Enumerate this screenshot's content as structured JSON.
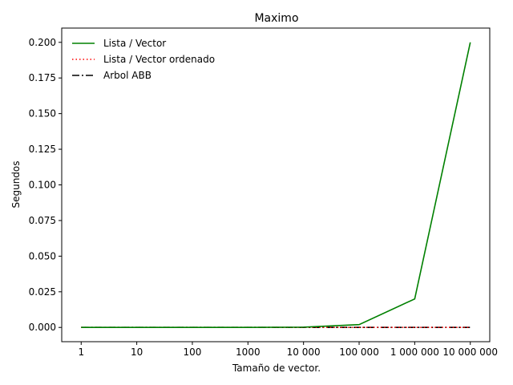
{
  "chart_data": {
    "type": "line",
    "title": "Maximo",
    "xlabel": "Tamaño de vector.",
    "ylabel": "Segundos",
    "x_scale": "log",
    "x": [
      1,
      10,
      100,
      1000,
      10000,
      100000,
      1000000,
      10000000
    ],
    "x_tick_labels": [
      "1",
      "10",
      "100",
      "1000",
      "10 000",
      "100 000",
      "1 000 000",
      "10 000 000"
    ],
    "y_ticks": [
      0.0,
      0.025,
      0.05,
      0.075,
      0.1,
      0.125,
      0.15,
      0.175,
      0.2
    ],
    "y_tick_labels": [
      "0.000",
      "0.025",
      "0.050",
      "0.075",
      "0.100",
      "0.125",
      "0.150",
      "0.175",
      "0.200"
    ],
    "ylim": [
      -0.01,
      0.21
    ],
    "grid": false,
    "legend_position": "top-left",
    "series": [
      {
        "name": "Lista / Vector",
        "color": "#008000",
        "style": "solid",
        "values": [
          0.0,
          0.0,
          0.0,
          0.0,
          0.0002,
          0.002,
          0.02,
          0.2
        ]
      },
      {
        "name": "Lista / Vector ordenado",
        "color": "#ff0000",
        "style": "dotted",
        "values": [
          0.0,
          0.0,
          0.0,
          0.0,
          0.0,
          0.0,
          0.0,
          0.0
        ]
      },
      {
        "name": "Arbol ABB",
        "color": "#000000",
        "style": "dashdot",
        "values": [
          0.0,
          0.0,
          0.0,
          0.0,
          0.0,
          0.0,
          0.0,
          0.0
        ]
      }
    ]
  }
}
